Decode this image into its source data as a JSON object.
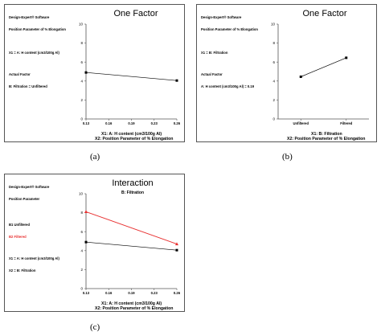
{
  "panels": [
    {
      "caption": "(a)",
      "title": "One Factor",
      "subtitle": "",
      "header": {
        "software": "Design-Expert® Software",
        "response": "Position Parameter of % Elongation",
        "factor_line": "X1 = A: H content (cm3/100g Al)",
        "actual_factor_label": "Actual Factor",
        "actual_factor": "B: Filtration = Unfiltered",
        "legend": []
      },
      "xlabel": "X1: A: H content (cm3/100g Al)",
      "ylabel": "X2: Position Parameter of % Elongation"
    },
    {
      "caption": "(b)",
      "title": "One Factor",
      "subtitle": "",
      "header": {
        "software": "Design-Expert® Software",
        "response": "Position Parameter of % Elongation",
        "factor_line": "X1 = B: Filtration",
        "actual_factor_label": "Actual Factor",
        "actual_factor": "A: H content (cm3/100g Al) = 0.19",
        "legend": []
      },
      "xlabel": "X1: B: Filtration",
      "ylabel": "X2: Position Parameter of % Elongation"
    },
    {
      "caption": "(c)",
      "title": "Interaction",
      "subtitle": "B: Filtration",
      "header": {
        "software": "Design-Expert® Software",
        "response": "Position Parameter",
        "factor_line": "X1 = A: H content (cm3/100g Al)",
        "actual_factor_label": "X2 = B: Filtration",
        "actual_factor": "",
        "legend": [
          "B1 Unfiltered",
          "B2 Filtered"
        ]
      },
      "xlabel": "X1: A: H content (cm3/100g Al)",
      "ylabel": "X2: Position Parameter of % Elongation"
    }
  ],
  "chart_data": [
    {
      "type": "line",
      "title": "One Factor",
      "x_ticks": [
        "0.13",
        "0.16",
        "0.19",
        "0.23",
        "0.26"
      ],
      "x": [
        0.13,
        0.26
      ],
      "ylim": [
        0,
        10
      ],
      "y_ticks": [
        "0",
        "2",
        "4",
        "6",
        "8",
        "10"
      ],
      "series": [
        {
          "values": [
            4.9,
            4.05
          ],
          "color": "#000000",
          "marker": "square"
        }
      ]
    },
    {
      "type": "line",
      "title": "One Factor",
      "categories": [
        "Unfiltered",
        "Filtered"
      ],
      "ylim": [
        0,
        10
      ],
      "y_ticks": [
        "0",
        "2",
        "4",
        "6",
        "8",
        "10"
      ],
      "series": [
        {
          "values": [
            4.45,
            6.45
          ],
          "color": "#000000",
          "marker": "square"
        }
      ]
    },
    {
      "type": "line",
      "title": "Interaction",
      "x_ticks": [
        "0.13",
        "0.16",
        "0.19",
        "0.23",
        "0.26"
      ],
      "x": [
        0.13,
        0.26
      ],
      "ylim": [
        0,
        10
      ],
      "y_ticks": [
        "0",
        "2",
        "4",
        "6",
        "8",
        "10"
      ],
      "series": [
        {
          "name": "B1 Unfiltered",
          "values": [
            4.9,
            4.05
          ],
          "color": "#000000",
          "marker": "square"
        },
        {
          "name": "B2 Filtered",
          "values": [
            8.1,
            4.7
          ],
          "color": "#e83030",
          "marker": "triangle"
        }
      ]
    }
  ]
}
